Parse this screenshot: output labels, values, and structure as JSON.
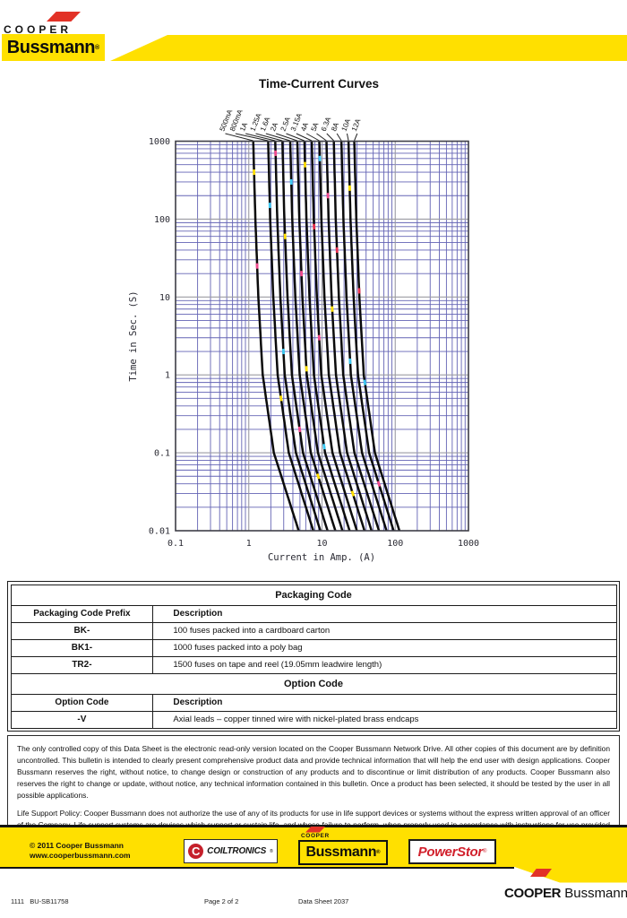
{
  "header": {
    "cooper": "COOPER",
    "bussmann": "Bussmann",
    "reg": "®"
  },
  "chart_data": {
    "type": "line",
    "title": "Time-Current Curves",
    "xlabel": "Current in Amp. (A)",
    "ylabel": "Time in Sec. (S)",
    "x_log": true,
    "y_log": true,
    "xlim": [
      0.1,
      1000
    ],
    "ylim": [
      0.01,
      1000
    ],
    "x_ticks": [
      "0.1",
      "1",
      "10",
      "100",
      "1000"
    ],
    "y_ticks": [
      "1000",
      "100",
      "10",
      "1",
      "0.1",
      "0.01"
    ],
    "legend_position": "top-rotated-labels",
    "grid": {
      "minor_color": "#5b5bb0",
      "major_color": "#9b9ba3",
      "border_color": "#3f3f48",
      "curve_color": "#0b0b0b"
    },
    "time_points": [
      1000,
      100,
      10,
      1,
      0.1,
      0.01
    ],
    "series": [
      {
        "name": "500mA",
        "amps": 0.5,
        "currents": [
          1.15,
          1.23,
          1.35,
          1.55,
          2.2,
          4.8
        ]
      },
      {
        "name": "800mA",
        "amps": 0.8,
        "currents": [
          1.84,
          1.96,
          2.16,
          2.48,
          3.52,
          7.6
        ]
      },
      {
        "name": "1A",
        "amps": 1,
        "currents": [
          2.3,
          2.45,
          2.7,
          3.1,
          4.4,
          9.5
        ]
      },
      {
        "name": "1.25A",
        "amps": 1.25,
        "currents": [
          2.88,
          3.06,
          3.38,
          3.88,
          5.5,
          11.9
        ]
      },
      {
        "name": "1.6A",
        "amps": 1.6,
        "currents": [
          3.68,
          3.92,
          4.32,
          4.96,
          7.04,
          15.2
        ]
      },
      {
        "name": "2A",
        "amps": 2,
        "currents": [
          4.6,
          4.9,
          5.4,
          6.2,
          8.8,
          19
        ]
      },
      {
        "name": "2.5A",
        "amps": 2.5,
        "currents": [
          5.75,
          6.13,
          6.75,
          7.75,
          11,
          23.8
        ]
      },
      {
        "name": "3.15A",
        "amps": 3.15,
        "currents": [
          7.25,
          7.72,
          8.51,
          9.77,
          13.9,
          29.9
        ]
      },
      {
        "name": "4A",
        "amps": 4,
        "currents": [
          9.2,
          9.8,
          10.8,
          12.4,
          17.6,
          38
        ]
      },
      {
        "name": "5A",
        "amps": 5,
        "currents": [
          11.5,
          12.3,
          13.5,
          15.5,
          22,
          47.5
        ]
      },
      {
        "name": "6.3A",
        "amps": 6.3,
        "currents": [
          14.5,
          15.4,
          17,
          19.5,
          27.7,
          59.9
        ]
      },
      {
        "name": "8A",
        "amps": 8,
        "currents": [
          18.4,
          19.6,
          21.6,
          24.8,
          35.2,
          76
        ]
      },
      {
        "name": "10A",
        "amps": 10,
        "currents": [
          23,
          24.5,
          27,
          31,
          44,
          95
        ]
      },
      {
        "name": "12A",
        "amps": 12,
        "currents": [
          27.6,
          29.4,
          32.4,
          37.2,
          52.8,
          114
        ]
      }
    ],
    "markers": [
      {
        "s": 0,
        "t": 400,
        "c": "#ffdf00"
      },
      {
        "s": 0,
        "t": 25,
        "c": "#f14b8e"
      },
      {
        "s": 1,
        "t": 150,
        "c": "#3ec9f2"
      },
      {
        "s": 1,
        "t": 0.5,
        "c": "#ffdf00"
      },
      {
        "s": 2,
        "t": 700,
        "c": "#f14b8e"
      },
      {
        "s": 2,
        "t": 2,
        "c": "#3ec9f2"
      },
      {
        "s": 3,
        "t": 60,
        "c": "#ffdf00"
      },
      {
        "s": 3,
        "t": 0.2,
        "c": "#f14b8e"
      },
      {
        "s": 4,
        "t": 300,
        "c": "#3ec9f2"
      },
      {
        "s": 4,
        "t": 0.05,
        "c": "#ffdf00"
      },
      {
        "s": 5,
        "t": 20,
        "c": "#f14b8e"
      },
      {
        "s": 5,
        "t": 1.2,
        "c": "#ffdf00"
      },
      {
        "s": 6,
        "t": 500,
        "c": "#ffdf00"
      },
      {
        "s": 6,
        "t": 0.12,
        "c": "#3ec9f2"
      },
      {
        "s": 7,
        "t": 80,
        "c": "#e8304f"
      },
      {
        "s": 7,
        "t": 3,
        "c": "#f14b8e"
      },
      {
        "s": 8,
        "t": 600,
        "c": "#3ec9f2"
      },
      {
        "s": 8,
        "t": 0.03,
        "c": "#ffdf00"
      },
      {
        "s": 9,
        "t": 200,
        "c": "#f14b8e"
      },
      {
        "s": 9,
        "t": 7,
        "c": "#ffdf00"
      },
      {
        "s": 10,
        "t": 40,
        "c": "#e8304f"
      },
      {
        "s": 11,
        "t": 1.5,
        "c": "#3ec9f2"
      },
      {
        "s": 12,
        "t": 250,
        "c": "#ffdf00"
      },
      {
        "s": 12,
        "t": 0.04,
        "c": "#f14b8e"
      },
      {
        "s": 13,
        "t": 12,
        "c": "#e8304f"
      },
      {
        "s": 13,
        "t": 0.8,
        "c": "#3ec9f2"
      }
    ]
  },
  "tables": {
    "packaging": {
      "title": "Packaging Code",
      "col1": "Packaging Code Prefix",
      "col2": "Description",
      "rows": [
        [
          "BK-",
          "100 fuses packed into a cardboard carton"
        ],
        [
          "BK1-",
          "1000 fuses packed into a poly bag"
        ],
        [
          "TR2-",
          "1500 fuses on tape and reel (19.05mm leadwire length)"
        ]
      ]
    },
    "option": {
      "title": "Option Code",
      "col1": "Option Code",
      "col2": "Description",
      "rows": [
        [
          "-V",
          "Axial leads – copper tinned wire with nickel-plated brass endcaps"
        ]
      ]
    }
  },
  "disclaimer": {
    "p1": "The only controlled copy of this Data Sheet is the electronic read-only version located on the Cooper Bussmann Network Drive. All other copies of this document are by definition uncontrolled. This bulletin is intended to clearly present comprehensive product data and provide technical information that will help the end user with design applications. Cooper Bussmann reserves the right, without notice, to change design or construction of any products and to discontinue or limit distribution of any products. Cooper Bussmann also reserves the right to change or update, without notice, any technical information contained in this bulletin. Once a product has been selected, it should be tested by the user in all possible applications.",
    "p2": "Life Support Policy: Cooper Bussmann does not authorize the use of any of its products for use in life support devices or systems without the express written approval of an officer of the Company. Life support systems are devices which support or sustain life, and whose failure to perform, when properly used in accordance with instructions for use provided in the labeling, can be reasonably expected to result in significant injury to the user."
  },
  "footer": {
    "copyright_line1": "© 2011 Cooper Bussmann",
    "copyright_line2": "www.cooperbussmann.com",
    "coiltronics": "COILTRONICS",
    "coiltronics_c": "C",
    "cooper_small": "COOPER",
    "bussmann_box": "Bussmann",
    "powerstor": "PowerStor",
    "brand_cooper": "COOPER",
    "brand_bussmann": "Bussmann"
  },
  "pageinfo": {
    "doc_number": "1111   BU-SB11758",
    "page": "Page 2 of 2",
    "datasheet": "Data Sheet 2037"
  }
}
